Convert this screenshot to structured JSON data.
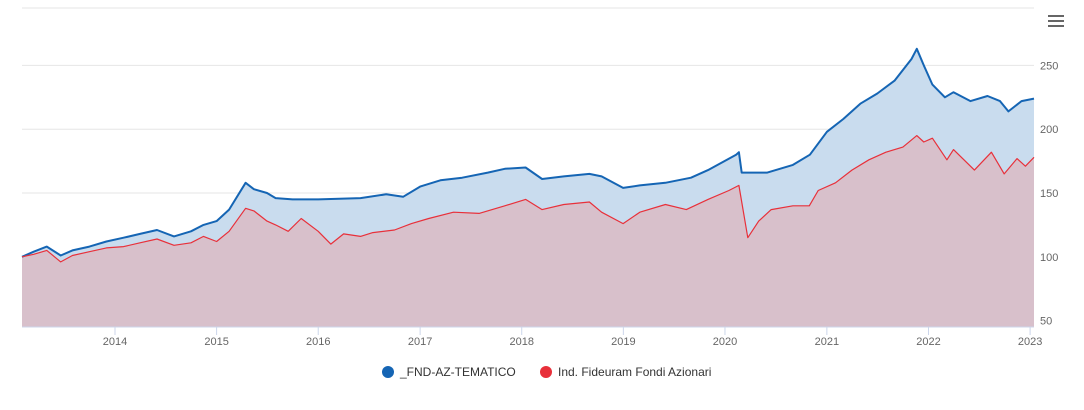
{
  "menu": {
    "icon": "hamburger-menu-icon"
  },
  "chart_data": {
    "type": "area",
    "title": "",
    "xlabel": "",
    "ylabel": "",
    "x_ticks": [
      "2014",
      "2015",
      "2016",
      "2017",
      "2018",
      "2019",
      "2020",
      "2021",
      "2022",
      "2023"
    ],
    "y_ticks": [
      50,
      100,
      150,
      200,
      250
    ],
    "ylim": [
      45,
      295
    ],
    "xlim": [
      "2013-02-01",
      "2023-01-15"
    ],
    "grid": true,
    "legend_position": "bottom-center",
    "series": [
      {
        "name": "_FND-AZ-TEMATICO",
        "color": "#1565b4",
        "fill": "#c9dcee",
        "points": [
          [
            "2013-02-01",
            100
          ],
          [
            "2013-03-15",
            104
          ],
          [
            "2013-05-01",
            108
          ],
          [
            "2013-06-20",
            101
          ],
          [
            "2013-08-01",
            105
          ],
          [
            "2013-10-01",
            108
          ],
          [
            "2013-12-01",
            112
          ],
          [
            "2014-02-01",
            115
          ],
          [
            "2014-04-01",
            118
          ],
          [
            "2014-06-01",
            121
          ],
          [
            "2014-08-01",
            116
          ],
          [
            "2014-10-01",
            120
          ],
          [
            "2014-11-15",
            125
          ],
          [
            "2015-01-01",
            128
          ],
          [
            "2015-02-15",
            137
          ],
          [
            "2015-04-15",
            158
          ],
          [
            "2015-05-15",
            153
          ],
          [
            "2015-07-01",
            150
          ],
          [
            "2015-08-01",
            146
          ],
          [
            "2015-10-01",
            145
          ],
          [
            "2016-01-01",
            145
          ],
          [
            "2016-06-01",
            146
          ],
          [
            "2016-09-01",
            149
          ],
          [
            "2016-11-01",
            147
          ],
          [
            "2017-01-01",
            155
          ],
          [
            "2017-03-15",
            160
          ],
          [
            "2017-06-01",
            162
          ],
          [
            "2017-09-01",
            166
          ],
          [
            "2017-11-01",
            169
          ],
          [
            "2018-01-15",
            170
          ],
          [
            "2018-03-15",
            161
          ],
          [
            "2018-06-01",
            163
          ],
          [
            "2018-09-01",
            165
          ],
          [
            "2018-10-15",
            163
          ],
          [
            "2018-12-31",
            154
          ],
          [
            "2019-03-01",
            156
          ],
          [
            "2019-06-01",
            158
          ],
          [
            "2019-09-01",
            162
          ],
          [
            "2019-11-01",
            168
          ],
          [
            "2020-02-10",
            180
          ],
          [
            "2020-02-20",
            182
          ],
          [
            "2020-03-01",
            166
          ],
          [
            "2020-06-01",
            166
          ],
          [
            "2020-09-01",
            172
          ],
          [
            "2020-11-01",
            180
          ],
          [
            "2021-01-01",
            198
          ],
          [
            "2021-03-01",
            208
          ],
          [
            "2021-05-01",
            220
          ],
          [
            "2021-07-01",
            228
          ],
          [
            "2021-09-01",
            238
          ],
          [
            "2021-11-01",
            255
          ],
          [
            "2021-11-20",
            263
          ],
          [
            "2021-12-15",
            250
          ],
          [
            "2022-01-15",
            235
          ],
          [
            "2022-03-01",
            225
          ],
          [
            "2022-04-01",
            229
          ],
          [
            "2022-06-01",
            222
          ],
          [
            "2022-08-01",
            226
          ],
          [
            "2022-09-15",
            222
          ],
          [
            "2022-10-15",
            214
          ],
          [
            "2022-12-01",
            222
          ],
          [
            "2023-01-15",
            224
          ]
        ]
      },
      {
        "name": "Ind. Fideuram Fondi Azionari",
        "color": "#e8303a",
        "fill": "#d9bcc7",
        "points": [
          [
            "2013-02-01",
            100
          ],
          [
            "2013-03-15",
            102
          ],
          [
            "2013-05-01",
            105
          ],
          [
            "2013-06-20",
            96
          ],
          [
            "2013-08-01",
            101
          ],
          [
            "2013-10-01",
            104
          ],
          [
            "2013-12-01",
            107
          ],
          [
            "2014-02-01",
            108
          ],
          [
            "2014-04-01",
            111
          ],
          [
            "2014-06-01",
            114
          ],
          [
            "2014-08-01",
            109
          ],
          [
            "2014-10-01",
            111
          ],
          [
            "2014-11-15",
            116
          ],
          [
            "2015-01-01",
            112
          ],
          [
            "2015-02-15",
            120
          ],
          [
            "2015-04-15",
            138
          ],
          [
            "2015-05-15",
            136
          ],
          [
            "2015-07-01",
            128
          ],
          [
            "2015-08-01",
            125
          ],
          [
            "2015-09-15",
            120
          ],
          [
            "2015-11-01",
            130
          ],
          [
            "2016-01-01",
            120
          ],
          [
            "2016-02-15",
            110
          ],
          [
            "2016-04-01",
            118
          ],
          [
            "2016-06-01",
            116
          ],
          [
            "2016-07-15",
            119
          ],
          [
            "2016-10-01",
            121
          ],
          [
            "2016-12-01",
            126
          ],
          [
            "2017-02-01",
            130
          ],
          [
            "2017-05-01",
            135
          ],
          [
            "2017-08-01",
            134
          ],
          [
            "2017-11-01",
            140
          ],
          [
            "2018-01-15",
            145
          ],
          [
            "2018-03-15",
            137
          ],
          [
            "2018-06-01",
            141
          ],
          [
            "2018-09-01",
            143
          ],
          [
            "2018-10-15",
            135
          ],
          [
            "2018-12-31",
            126
          ],
          [
            "2019-03-01",
            135
          ],
          [
            "2019-06-01",
            141
          ],
          [
            "2019-08-15",
            137
          ],
          [
            "2019-11-01",
            145
          ],
          [
            "2020-01-15",
            152
          ],
          [
            "2020-02-20",
            156
          ],
          [
            "2020-03-23",
            115
          ],
          [
            "2020-05-01",
            128
          ],
          [
            "2020-06-15",
            137
          ],
          [
            "2020-09-01",
            140
          ],
          [
            "2020-10-30",
            140
          ],
          [
            "2020-12-01",
            152
          ],
          [
            "2021-02-01",
            158
          ],
          [
            "2021-04-01",
            168
          ],
          [
            "2021-06-01",
            176
          ],
          [
            "2021-08-01",
            182
          ],
          [
            "2021-10-01",
            186
          ],
          [
            "2021-11-20",
            195
          ],
          [
            "2021-12-15",
            190
          ],
          [
            "2022-01-15",
            193
          ],
          [
            "2022-03-08",
            176
          ],
          [
            "2022-04-01",
            184
          ],
          [
            "2022-06-15",
            168
          ],
          [
            "2022-08-15",
            182
          ],
          [
            "2022-09-30",
            165
          ],
          [
            "2022-11-15",
            177
          ],
          [
            "2022-12-15",
            171
          ],
          [
            "2023-01-15",
            178
          ]
        ]
      }
    ]
  }
}
